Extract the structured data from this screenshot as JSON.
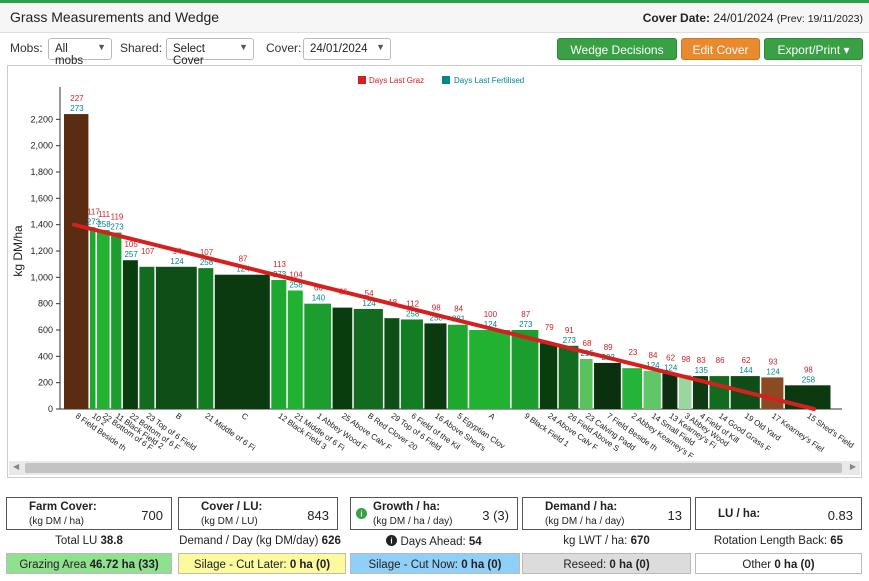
{
  "header": {
    "title": "Grass Measurements and Wedge",
    "cover_date_label": "Cover Date:",
    "cover_date": "24/01/2024",
    "prev": "(Prev: 19/11/2023)"
  },
  "toolbar": {
    "mobs_label": "Mobs:",
    "mobs_value": "All mobs",
    "shared_label": "Shared:",
    "shared_value": "Select Cover",
    "cover_label": "Cover:",
    "cover_value": "24/01/2024",
    "wedge_btn": "Wedge Decisions",
    "edit_btn": "Edit Cover",
    "export_btn": "Export/Print ▾"
  },
  "colors": {
    "accent_green": "#39a046",
    "orange": "#e88a2e",
    "wedge_line": "#d62020",
    "last_grazed": "#d62020",
    "last_fertilised": "#00868b"
  },
  "chart_data": {
    "type": "bar",
    "ylabel": "kg DM/ha",
    "ylim": [
      0,
      2400
    ],
    "yticks": [
      0,
      200,
      400,
      600,
      800,
      1000,
      1200,
      1400,
      1600,
      1800,
      2000,
      2200
    ],
    "legend": [
      "Days Last Graz",
      "Days Last Fertilised"
    ],
    "legend_position": "top",
    "wedge_line": {
      "start": 1400,
      "end": 0
    },
    "categories": [
      "8 Field Beside th",
      "10 2",
      "22 Bottom of 6 F",
      "11 Black Field 2",
      "22 Bottom of 6 F",
      "23 Top of 6 Field",
      "B",
      "21 Middle of 6 Fi",
      "C",
      "12 Black Field 3",
      "21 Middle of 6 Fi",
      "1 Abbey Wood F",
      "25 Above Calv F",
      "B Red Clover 20",
      "29 Top of 6 Field",
      "6 Field of the Kil",
      "16 Above Shed's",
      "5 Egyptian Clov",
      "A",
      "9 Black Field 1",
      "24 Above Calv F",
      "26 Field Above S",
      "23 Calving Padd",
      "7 Field Beside th",
      "2 Abbey Kearney's F",
      "14 Small Field",
      "13 Kearney's Fi",
      "3 Abbey Wood",
      "4 Field of Kill",
      "14 Good Grass F",
      "19 Old Yard",
      "17 Kearney's Fiel",
      "15 Shed's Field"
    ],
    "values": [
      2240,
      1380,
      1360,
      1340,
      1130,
      1080,
      1080,
      1070,
      1020,
      980,
      900,
      800,
      770,
      760,
      690,
      680,
      650,
      640,
      600,
      600,
      500,
      480,
      380,
      350,
      310,
      290,
      270,
      260,
      250,
      250,
      250,
      240,
      180
    ],
    "days_last_grazed": [
      "227",
      "117",
      "111",
      "119",
      "105",
      "107",
      "94",
      "107",
      "87",
      "113",
      "104",
      "66",
      "66",
      "54",
      "18",
      "112",
      "98",
      "84",
      "100",
      "87",
      "79",
      "91",
      "68",
      "89",
      "23",
      "84",
      "62",
      "98",
      "83",
      "86",
      "62",
      "93",
      "98"
    ],
    "days_last_fertilised": [
      "273",
      "273",
      "258",
      "273",
      "257",
      "",
      "124",
      "258",
      "124",
      "273",
      "258",
      "140",
      "",
      "124",
      "",
      "258",
      "258",
      "281",
      "124",
      "273",
      "",
      "273",
      "215",
      "282",
      "",
      "124",
      "124",
      "",
      "135",
      "",
      "144",
      "124",
      "258"
    ]
  },
  "stats": {
    "farm_cover": {
      "label": "Farm Cover:",
      "sub": "(kg DM / ha)",
      "value": "700"
    },
    "cover_lu": {
      "label": "Cover / LU:",
      "sub": "(kg DM / LU)",
      "value": "843"
    },
    "growth": {
      "label": "Growth / ha:",
      "sub": "(kg DM / ha / day)",
      "value": "3 (3)"
    },
    "demand": {
      "label": "Demand / ha:",
      "sub": "(kg DM / ha / day)",
      "value": "13"
    },
    "lu_ha": {
      "label": "LU / ha:",
      "value": "0.83"
    }
  },
  "row1": {
    "total_lu_label": "Total LU",
    "total_lu": "38.8",
    "demand_day_label": "Demand / Day (kg DM/day)",
    "demand_day": "626",
    "days_ahead_label": "Days Ahead:",
    "days_ahead": "54",
    "lwt_label": "kg LWT / ha:",
    "lwt": "670",
    "rotation_label": "Rotation Length Back:",
    "rotation": "65"
  },
  "row2": {
    "grazing_label": "Grazing Area",
    "grazing": "46.72 ha (33)",
    "silage_later_label": "Silage - Cut Later:",
    "silage_later": "0 ha (0)",
    "silage_now_label": "Silage - Cut Now:",
    "silage_now": "0 ha (0)",
    "reseed_label": "Reseed:",
    "reseed": "0 ha (0)",
    "other_label": "Other",
    "other": "0 ha (0)"
  }
}
